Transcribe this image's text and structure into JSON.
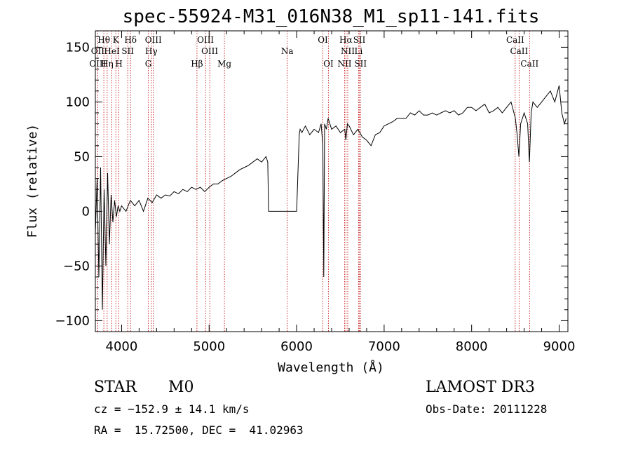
{
  "chart_data": {
    "type": "line",
    "title": "spec-55924-M31_016N38_M1_sp11-141.fits",
    "xlabel": "Wavelength (Å)",
    "ylabel": "Flux (relative)",
    "xlim": [
      3700,
      9100
    ],
    "ylim": [
      -110,
      165
    ],
    "xticks": [
      4000,
      5000,
      6000,
      7000,
      8000,
      9000
    ],
    "yticks": [
      -100,
      -50,
      0,
      50,
      100,
      150
    ],
    "grid": false,
    "series": [
      {
        "x": [
          3700,
          3720,
          3740,
          3760,
          3780,
          3800,
          3820,
          3840,
          3860,
          3880,
          3900,
          3920,
          3940,
          3960,
          3980,
          4000,
          4050,
          4100,
          4150,
          4200,
          4250,
          4300,
          4350,
          4400,
          4450,
          4500,
          4550,
          4600,
          4650,
          4700,
          4750,
          4800,
          4850,
          4900,
          4950,
          5000,
          5050,
          5100,
          5150,
          5200,
          5250,
          5300,
          5350,
          5400,
          5450,
          5500,
          5550,
          5600,
          5650,
          5670,
          5680,
          5700,
          5800,
          5900,
          6000,
          6030,
          6040,
          6060,
          6100,
          6150,
          6200,
          6250,
          6280,
          6300,
          6310,
          6320,
          6340,
          6360,
          6400,
          6450,
          6500,
          6550,
          6563,
          6580,
          6600,
          6650,
          6700,
          6750,
          6800,
          6850,
          6900,
          6950,
          7000,
          7050,
          7100,
          7150,
          7200,
          7250,
          7300,
          7350,
          7400,
          7450,
          7500,
          7550,
          7600,
          7650,
          7700,
          7750,
          7800,
          7850,
          7900,
          7950,
          8000,
          8050,
          8100,
          8150,
          8200,
          8250,
          8300,
          8350,
          8400,
          8450,
          8500,
          8520,
          8540,
          8560,
          8600,
          8640,
          8660,
          8680,
          8700,
          8750,
          8800,
          8850,
          8900,
          8950,
          9000,
          9030,
          9060,
          9080
        ],
        "y": [
          -20,
          30,
          -60,
          40,
          -90,
          20,
          -50,
          35,
          -30,
          15,
          -10,
          10,
          -5,
          5,
          0,
          5,
          0,
          10,
          5,
          10,
          0,
          12,
          8,
          15,
          12,
          15,
          14,
          18,
          16,
          20,
          18,
          22,
          20,
          22,
          18,
          22,
          25,
          25,
          28,
          30,
          32,
          35,
          38,
          40,
          42,
          45,
          48,
          45,
          50,
          45,
          0,
          0,
          0,
          0,
          0,
          70,
          75,
          72,
          78,
          70,
          75,
          72,
          80,
          60,
          -60,
          80,
          75,
          85,
          75,
          78,
          72,
          75,
          65,
          80,
          78,
          70,
          75,
          68,
          65,
          60,
          70,
          72,
          78,
          80,
          82,
          85,
          85,
          85,
          90,
          88,
          92,
          88,
          88,
          90,
          88,
          90,
          92,
          90,
          92,
          88,
          90,
          95,
          95,
          92,
          95,
          98,
          90,
          92,
          95,
          90,
          95,
          100,
          85,
          70,
          50,
          80,
          90,
          80,
          45,
          90,
          100,
          95,
          100,
          105,
          110,
          100,
          115,
          90,
          80,
          85
        ]
      }
    ],
    "spectral_lines": [
      {
        "label": "Hθ",
        "x": 3797,
        "row": 1
      },
      {
        "label": "K",
        "x": 3934,
        "row": 1
      },
      {
        "label": "Hδ",
        "x": 4102,
        "row": 1
      },
      {
        "label": "OIII",
        "x": 4363,
        "row": 1
      },
      {
        "label": "OIII",
        "x": 4959,
        "row": 1
      },
      {
        "label": "OI",
        "x": 6300,
        "row": 1
      },
      {
        "label": "Hα",
        "x": 6563,
        "row": 1
      },
      {
        "label": "SII",
        "x": 6717,
        "row": 1
      },
      {
        "label": "CaII",
        "x": 8498,
        "row": 1
      },
      {
        "label": "OII",
        "x": 3727,
        "row": 2
      },
      {
        "label": "HeI",
        "x": 3889,
        "row": 2
      },
      {
        "label": "SII",
        "x": 4070,
        "row": 2
      },
      {
        "label": "Hγ",
        "x": 4340,
        "row": 2
      },
      {
        "label": "OIII",
        "x": 5007,
        "row": 2
      },
      {
        "label": "Na",
        "x": 5893,
        "row": 2
      },
      {
        "label": "NII",
        "x": 6584,
        "row": 2
      },
      {
        "label": "Li",
        "x": 6708,
        "row": 2
      },
      {
        "label": "CaII",
        "x": 8542,
        "row": 2
      },
      {
        "label": "OIII",
        "x": 3727,
        "row": 3
      },
      {
        "label": "Hη",
        "x": 3835,
        "row": 3
      },
      {
        "label": "H",
        "x": 3969,
        "row": 3
      },
      {
        "label": "G",
        "x": 4305,
        "row": 3
      },
      {
        "label": "Hβ",
        "x": 4861,
        "row": 3
      },
      {
        "label": "Mg",
        "x": 5175,
        "row": 3
      },
      {
        "label": "OI",
        "x": 6364,
        "row": 3
      },
      {
        "label": "NII",
        "x": 6548,
        "row": 3
      },
      {
        "label": "SII",
        "x": 6731,
        "row": 3
      },
      {
        "label": "CaII",
        "x": 8662,
        "row": 3
      }
    ],
    "line_color": "#c00000"
  },
  "info": {
    "class": "STAR",
    "subclass": "M0",
    "survey": "LAMOST DR3",
    "cz": "cz = −152.9 ± 14.1 km/s",
    "obs_date": "Obs-Date: 20111228",
    "coords": "RA =  15.72500, DEC =  41.02963"
  }
}
